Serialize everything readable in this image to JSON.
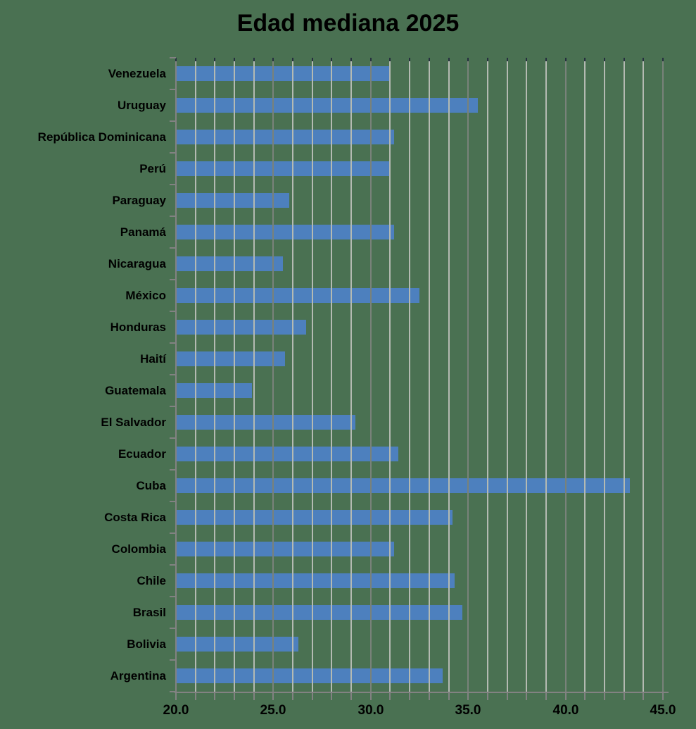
{
  "chart_data": {
    "type": "bar",
    "orientation": "horizontal",
    "title": "Edad mediana 2025",
    "categories": [
      "Venezuela",
      "Uruguay",
      "República Dominicana",
      "Perú",
      "Paraguay",
      "Panamá",
      "Nicaragua",
      "México",
      "Honduras",
      "Haití",
      "Guatemala",
      "El Salvador",
      "Ecuador",
      "Cuba",
      "Costa Rica",
      "Colombia",
      "Chile",
      "Brasil",
      "Bolivia",
      "Argentina"
    ],
    "values": [
      31.0,
      35.5,
      31.2,
      31.0,
      25.8,
      31.2,
      25.5,
      32.5,
      26.7,
      25.6,
      23.9,
      29.2,
      31.4,
      43.3,
      34.2,
      31.2,
      34.3,
      34.7,
      26.3,
      33.7
    ],
    "xlabel": "",
    "ylabel": "",
    "xlim": [
      20.0,
      45.0
    ],
    "x_tick_labels": [
      "20.0",
      "25.0",
      "30.0",
      "35.0",
      "40.0",
      "45.0"
    ],
    "minor_grid_interval": 1.0,
    "major_grid_interval": 5.0,
    "grid": "vertical gridlines drawn over bars, minor every 1.0, major darker every 5.0",
    "legend": "none",
    "colors": {
      "background": "#4a7152",
      "bar": "#4d80be",
      "gridline_minor": "#b4bab2",
      "gridline_major": "#79827a",
      "gridline_cap": "#26303f",
      "axis": "#828282",
      "text": "#000000"
    }
  }
}
